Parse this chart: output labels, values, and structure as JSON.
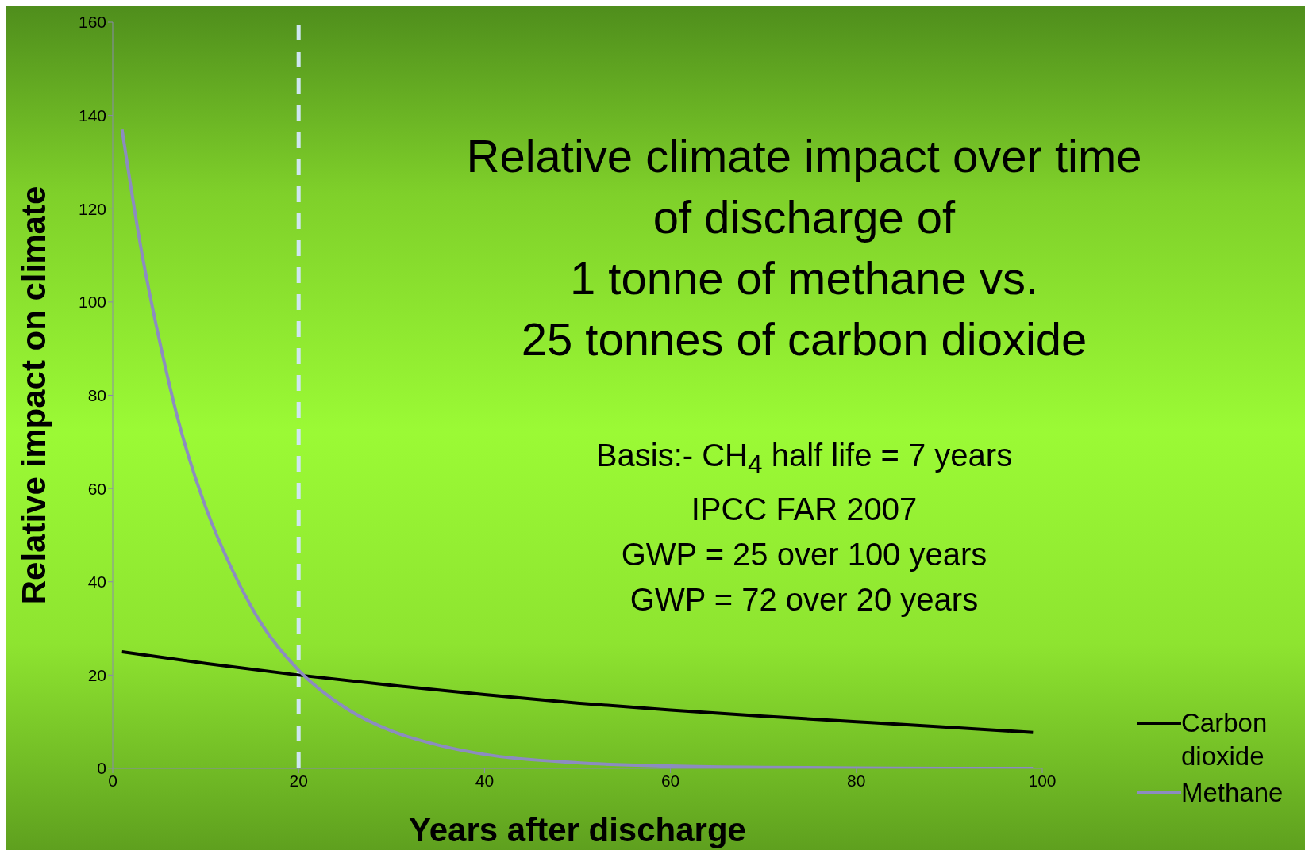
{
  "chart_data": {
    "type": "line",
    "title": "Relative climate impact over time\nof discharge of\n1 tonne of methane   vs.\n25 tonnes of carbon dioxide",
    "xlabel": "Years after discharge",
    "ylabel": "Relative impact on climate",
    "annotations": [
      "Basis:- CH$_{4}$ half life = 7 years\nIPCC FAR 2007\nGWP = 25 over 100 years\nGWP = 72 over 20 years"
    ],
    "series": [
      {
        "name": "Carbon dioxide",
        "color": "#000000",
        "x": [
          1,
          10,
          20,
          30,
          40,
          50,
          60,
          70,
          80,
          90,
          99
        ],
        "values": [
          25,
          22.5,
          20,
          17.8,
          15.8,
          14,
          12.5,
          11.2,
          10,
          8.8,
          7.7
        ]
      },
      {
        "name": "Methane",
        "color": "#8c8cc0",
        "x": [
          1,
          3,
          5,
          7,
          10,
          13,
          16,
          20,
          25,
          30,
          35,
          40,
          50,
          60,
          70,
          80,
          90,
          99
        ],
        "values": [
          137,
          112,
          92,
          75,
          56,
          42,
          31,
          21,
          13,
          8,
          5,
          3,
          1.2,
          0.5,
          0.2,
          0.1,
          0,
          0
        ]
      }
    ],
    "xlim": [
      0,
      100
    ],
    "xticks": [
      0,
      20,
      40,
      60,
      80,
      100
    ],
    "ylim": [
      0,
      160
    ],
    "yticks": [
      0,
      20,
      40,
      60,
      80,
      100,
      120,
      140,
      160
    ],
    "ref_lines": [
      {
        "axis": "x",
        "value": 20,
        "color": "#cfe6f2",
        "line_style": "dashed"
      }
    ],
    "legend": "bottom right",
    "grid": false,
    "marker": "none",
    "line_style": "solid"
  }
}
